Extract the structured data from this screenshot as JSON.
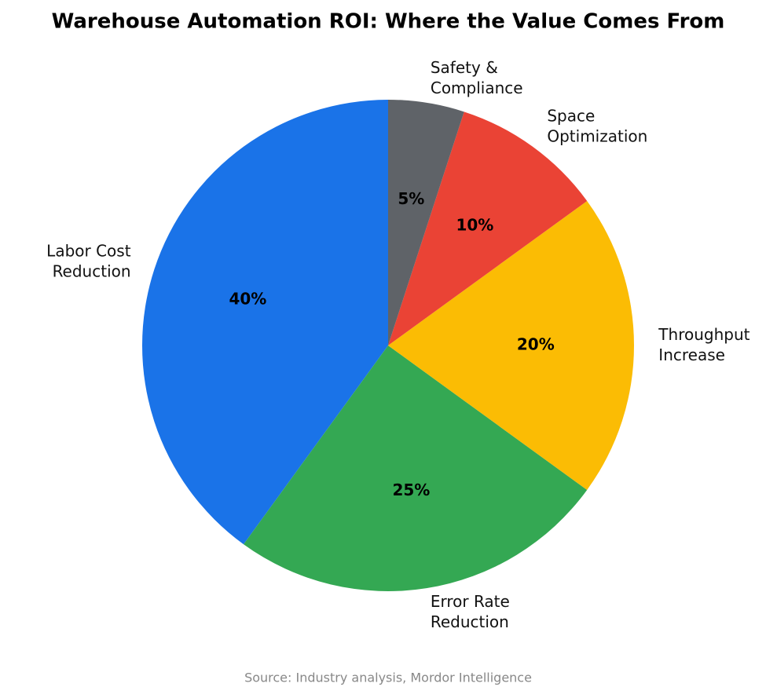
{
  "chart_data": {
    "type": "pie",
    "title": "Warehouse Automation ROI: Where the Value Comes From",
    "categories": [
      "Labor Cost\nReduction",
      "Error Rate\nReduction",
      "Throughput\nIncrease",
      "Space\nOptimization",
      "Safety &\nCompliance"
    ],
    "values": [
      40,
      25,
      20,
      10,
      5
    ],
    "value_labels": [
      "40%",
      "25%",
      "20%",
      "10%",
      "5%"
    ],
    "colors": [
      "#1a73e8",
      "#34a853",
      "#fbbc04",
      "#ea4335",
      "#5f6368"
    ],
    "source": "Source: Industry analysis, Mordor Intelligence"
  }
}
